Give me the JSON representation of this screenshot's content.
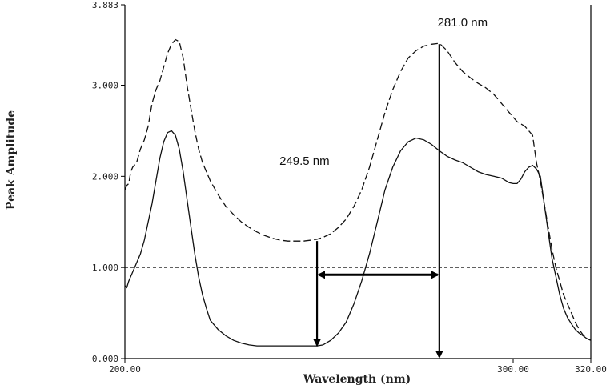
{
  "chart_data": {
    "type": "line",
    "xlabel": "Wavelength (nm)",
    "ylabel": "Peak Amplitude",
    "xlim": [
      200,
      320
    ],
    "ylim": [
      0,
      3.883
    ],
    "x_ticks": [
      {
        "value": 200,
        "label": "200.00"
      },
      {
        "value": 300,
        "label": "300.00"
      },
      {
        "value": 320,
        "label": "320.00"
      }
    ],
    "y_ticks": [
      {
        "value": 0,
        "label": "0.000"
      },
      {
        "value": 1,
        "label": "1.000"
      },
      {
        "value": 2,
        "label": "2.000"
      },
      {
        "value": 3,
        "label": "3.000"
      },
      {
        "value": 3.883,
        "label": "3.883"
      }
    ],
    "reference_line": {
      "y": 1.0,
      "style": "dashed"
    },
    "series": [
      {
        "style": "dashed",
        "x": [
          200,
          200.5,
          201,
          201.5,
          202,
          203,
          204,
          205,
          206,
          207,
          208,
          209,
          210,
          211,
          212,
          213,
          214,
          215,
          216,
          217,
          218,
          219,
          220,
          222,
          224,
          226,
          228,
          230,
          232,
          234,
          236,
          238,
          240,
          242,
          244,
          246,
          248,
          249.5,
          251,
          253,
          255,
          257,
          259,
          261,
          263,
          265,
          267,
          269,
          271,
          273,
          275,
          277,
          279,
          281,
          283,
          285,
          287,
          289,
          291,
          293,
          295,
          297,
          299,
          301,
          303,
          305,
          306,
          307,
          308,
          309,
          310,
          311,
          312,
          313,
          314,
          315,
          316,
          317,
          318,
          319,
          320
        ],
        "y": [
          1.85,
          1.9,
          1.92,
          2.05,
          2.1,
          2.15,
          2.3,
          2.4,
          2.55,
          2.8,
          2.95,
          3.05,
          3.2,
          3.35,
          3.45,
          3.5,
          3.48,
          3.3,
          3.0,
          2.75,
          2.5,
          2.3,
          2.15,
          1.95,
          1.8,
          1.67,
          1.58,
          1.5,
          1.44,
          1.39,
          1.35,
          1.32,
          1.3,
          1.29,
          1.29,
          1.29,
          1.3,
          1.31,
          1.33,
          1.37,
          1.44,
          1.53,
          1.67,
          1.85,
          2.1,
          2.4,
          2.7,
          2.95,
          3.15,
          3.3,
          3.38,
          3.43,
          3.45,
          3.46,
          3.38,
          3.25,
          3.15,
          3.08,
          3.02,
          2.97,
          2.9,
          2.8,
          2.7,
          2.6,
          2.55,
          2.45,
          2.15,
          1.95,
          1.7,
          1.45,
          1.2,
          1.0,
          0.85,
          0.7,
          0.6,
          0.5,
          0.4,
          0.32,
          0.26,
          0.22,
          0.2
        ]
      },
      {
        "style": "solid",
        "x": [
          200,
          200.5,
          201,
          202,
          203,
          204,
          205,
          206,
          207,
          208,
          209,
          210,
          211,
          212,
          213,
          214,
          215,
          216,
          217,
          218,
          219,
          220,
          221,
          222,
          224,
          226,
          228,
          230,
          232,
          234,
          236,
          238,
          240,
          242,
          244,
          246,
          248,
          249.5,
          251,
          253,
          255,
          257,
          259,
          261,
          263,
          265,
          267,
          269,
          271,
          273,
          275,
          277,
          279,
          281,
          283,
          285,
          287,
          289,
          291,
          293,
          295,
          297,
          299,
          300,
          301,
          302,
          303,
          304,
          305,
          306,
          307,
          308,
          309,
          310,
          311,
          312,
          313,
          314,
          315,
          316,
          317,
          318,
          319,
          320
        ],
        "y": [
          0.8,
          0.78,
          0.85,
          0.95,
          1.05,
          1.15,
          1.3,
          1.5,
          1.7,
          1.95,
          2.2,
          2.38,
          2.48,
          2.5,
          2.45,
          2.3,
          2.05,
          1.75,
          1.45,
          1.15,
          0.9,
          0.7,
          0.55,
          0.42,
          0.32,
          0.25,
          0.2,
          0.17,
          0.15,
          0.14,
          0.14,
          0.14,
          0.14,
          0.14,
          0.14,
          0.14,
          0.14,
          0.14,
          0.15,
          0.2,
          0.28,
          0.4,
          0.6,
          0.85,
          1.15,
          1.5,
          1.85,
          2.1,
          2.28,
          2.38,
          2.42,
          2.4,
          2.35,
          2.28,
          2.22,
          2.18,
          2.15,
          2.1,
          2.05,
          2.02,
          2.0,
          1.98,
          1.93,
          1.92,
          1.92,
          1.97,
          2.05,
          2.1,
          2.12,
          2.08,
          2.0,
          1.7,
          1.4,
          1.1,
          0.9,
          0.7,
          0.55,
          0.45,
          0.38,
          0.32,
          0.28,
          0.25,
          0.22,
          0.2
        ]
      }
    ],
    "annotations": [
      {
        "text": "281.0 nm",
        "x": 281.0,
        "y_from": 3.45,
        "y_to": 0.0
      },
      {
        "text": "249.5 nm",
        "x": 249.5,
        "y_from": 1.29,
        "y_to": 0.13
      }
    ],
    "double_arrow": {
      "x_from": 249.5,
      "x_to": 281.0,
      "y": 0.92
    }
  }
}
